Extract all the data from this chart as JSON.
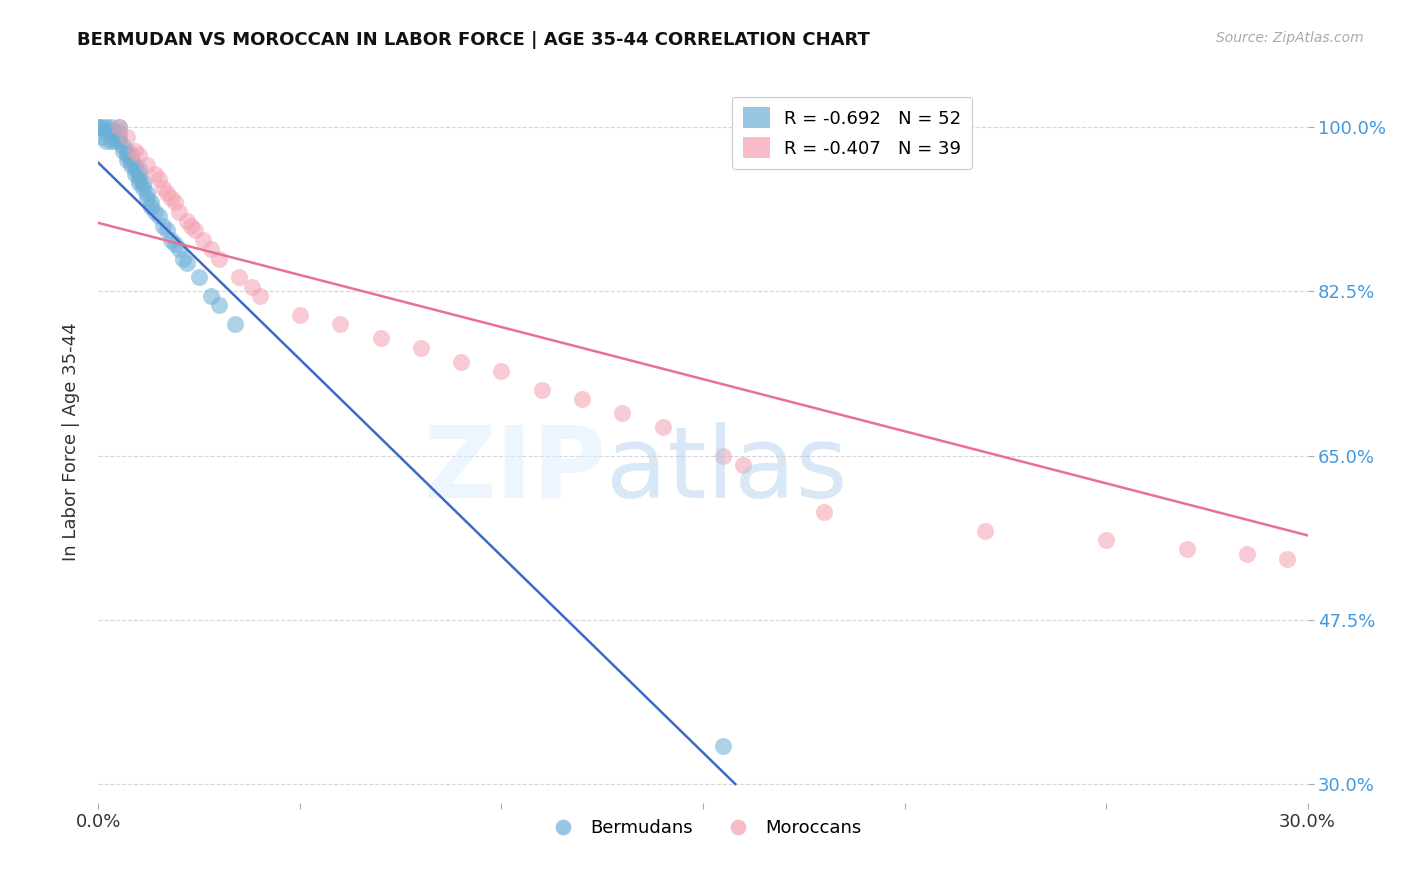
{
  "title": "BERMUDAN VS MOROCCAN IN LABOR FORCE | AGE 35-44 CORRELATION CHART",
  "source": "Source: ZipAtlas.com",
  "ylabel": "In Labor Force | Age 35-44",
  "ytick_vals": [
    0.3,
    0.475,
    0.65,
    0.825,
    1.0
  ],
  "ytick_labels": [
    "30.0%",
    "47.5%",
    "65.0%",
    "82.5%",
    "100.0%"
  ],
  "xlim": [
    0.0,
    0.3
  ],
  "ylim": [
    0.28,
    1.05
  ],
  "xtick_vals": [
    0.0,
    0.05,
    0.1,
    0.15,
    0.2,
    0.25,
    0.3
  ],
  "xtick_labels": [
    "0.0%",
    "",
    "",
    "",
    "",
    "",
    "30.0%"
  ],
  "background_color": "#ffffff",
  "grid_color": "#cccccc",
  "blue_color": "#6baed6",
  "pink_color": "#f4a0b0",
  "blue_line_color": "#3a6bc9",
  "pink_line_color": "#e87090",
  "legend_r1": "R = -0.692   N = 52",
  "legend_r2": "R = -0.407   N = 39",
  "legend_label_bermudans": "Bermudans",
  "legend_label_moroccans": "Moroccans",
  "blue_scatter_x": [
    0.0,
    0.0,
    0.001,
    0.001,
    0.002,
    0.002,
    0.002,
    0.003,
    0.003,
    0.003,
    0.004,
    0.004,
    0.004,
    0.005,
    0.005,
    0.005,
    0.005,
    0.006,
    0.006,
    0.007,
    0.007,
    0.007,
    0.008,
    0.008,
    0.008,
    0.009,
    0.009,
    0.009,
    0.01,
    0.01,
    0.01,
    0.01,
    0.011,
    0.011,
    0.012,
    0.012,
    0.013,
    0.013,
    0.014,
    0.015,
    0.016,
    0.017,
    0.018,
    0.019,
    0.02,
    0.021,
    0.022,
    0.025,
    0.028,
    0.03,
    0.034,
    0.155
  ],
  "blue_scatter_y": [
    1.0,
    1.0,
    1.0,
    0.99,
    1.0,
    0.995,
    0.985,
    1.0,
    0.995,
    0.985,
    0.995,
    0.99,
    0.985,
    1.0,
    0.995,
    0.99,
    0.985,
    0.98,
    0.975,
    0.975,
    0.97,
    0.965,
    0.97,
    0.965,
    0.96,
    0.96,
    0.955,
    0.95,
    0.955,
    0.95,
    0.945,
    0.94,
    0.94,
    0.935,
    0.93,
    0.925,
    0.92,
    0.915,
    0.91,
    0.905,
    0.895,
    0.89,
    0.88,
    0.875,
    0.87,
    0.86,
    0.855,
    0.84,
    0.82,
    0.81,
    0.79,
    0.34
  ],
  "pink_scatter_x": [
    0.005,
    0.007,
    0.009,
    0.01,
    0.012,
    0.014,
    0.015,
    0.016,
    0.017,
    0.018,
    0.019,
    0.02,
    0.022,
    0.023,
    0.024,
    0.026,
    0.028,
    0.03,
    0.035,
    0.038,
    0.04,
    0.05,
    0.06,
    0.07,
    0.08,
    0.09,
    0.1,
    0.11,
    0.12,
    0.13,
    0.14,
    0.155,
    0.16,
    0.18,
    0.22,
    0.25,
    0.27,
    0.285,
    0.295
  ],
  "pink_scatter_y": [
    1.0,
    0.99,
    0.975,
    0.97,
    0.96,
    0.95,
    0.945,
    0.935,
    0.93,
    0.925,
    0.92,
    0.91,
    0.9,
    0.895,
    0.89,
    0.88,
    0.87,
    0.86,
    0.84,
    0.83,
    0.82,
    0.8,
    0.79,
    0.775,
    0.765,
    0.75,
    0.74,
    0.72,
    0.71,
    0.695,
    0.68,
    0.65,
    0.64,
    0.59,
    0.57,
    0.56,
    0.55,
    0.545,
    0.54
  ],
  "blue_trend_x": [
    0.0,
    0.158
  ],
  "blue_trend_y": [
    0.962,
    0.3
  ],
  "pink_trend_x": [
    0.0,
    0.3
  ],
  "pink_trend_y": [
    0.898,
    0.565
  ]
}
